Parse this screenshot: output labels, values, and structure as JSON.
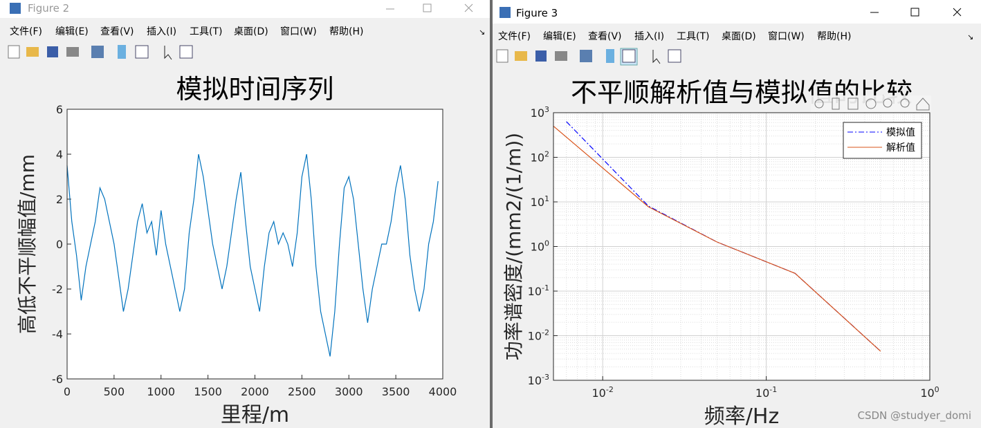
{
  "windows": [
    {
      "title": "Figure 2",
      "menu": [
        "文件(F)",
        "编辑(E)",
        "查看(V)",
        "插入(I)",
        "工具(T)",
        "桌面(D)",
        "窗口(W)",
        "帮助(H)"
      ]
    },
    {
      "title": "Figure 3",
      "menu": [
        "文件(F)",
        "编辑(E)",
        "查看(V)",
        "插入(I)",
        "工具(T)",
        "桌面(D)",
        "窗口(W)",
        "帮助(H)"
      ]
    }
  ],
  "watermark": "CSDN @studyer_domi",
  "chart_data": [
    {
      "type": "line",
      "title": "模拟时间序列",
      "x_label": "里程/m",
      "y_label": "高低不平顺幅值/mm",
      "color": "#0072bd",
      "x": [
        0,
        50,
        100,
        150,
        200,
        250,
        300,
        350,
        400,
        450,
        500,
        550,
        600,
        650,
        700,
        750,
        800,
        850,
        900,
        950,
        1000,
        1050,
        1100,
        1150,
        1200,
        1250,
        1300,
        1350,
        1400,
        1450,
        1500,
        1550,
        1600,
        1650,
        1700,
        1750,
        1800,
        1850,
        1900,
        1950,
        2000,
        2050,
        2100,
        2150,
        2200,
        2250,
        2300,
        2350,
        2400,
        2450,
        2500,
        2550,
        2600,
        2650,
        2700,
        2750,
        2800,
        2850,
        2900,
        2950,
        3000,
        3050,
        3100,
        3150,
        3200,
        3250,
        3300,
        3350,
        3400,
        3450,
        3500,
        3550,
        3600,
        3650,
        3700,
        3750,
        3800,
        3850,
        3900,
        3950
      ],
      "values": [
        3.5,
        1,
        -0.5,
        -2.5,
        -1,
        0,
        1,
        2.5,
        2,
        1,
        0,
        -1.5,
        -3,
        -2,
        -0.5,
        1,
        1.8,
        0.5,
        1,
        -0.5,
        1.5,
        0,
        -1,
        -2,
        -3,
        -2,
        0.5,
        2,
        4,
        3,
        1.5,
        0,
        -1,
        -2,
        -1,
        0.5,
        2,
        3.2,
        1,
        -1,
        -2,
        -3,
        -1,
        0.5,
        1,
        0,
        0.5,
        0,
        -1,
        0.5,
        3,
        4,
        2,
        -1,
        -3,
        -4,
        -5,
        -3,
        0,
        2.5,
        3,
        2,
        0,
        -2,
        -3.5,
        -2,
        -1,
        0,
        0,
        1,
        2.5,
        3.5,
        2,
        -0.5,
        -2,
        -3,
        -2,
        0,
        1,
        2.8
      ],
      "xlim": [
        0,
        4000
      ],
      "xticks": [
        0,
        500,
        1000,
        1500,
        2000,
        2500,
        3000,
        3500,
        4000
      ],
      "ylim": [
        -6,
        6
      ],
      "yticks": [
        -6,
        -4,
        -2,
        0,
        2,
        4,
        6
      ],
      "grid": false
    },
    {
      "type": "line",
      "title": "不平顺解析值与模拟值的比较",
      "x_label": "频率/Hz",
      "y_label": "功率谱密度/(mm2/(1/m))",
      "xscale": "log",
      "yscale": "log",
      "grid": true,
      "minor_grid": true,
      "legend": "northeast",
      "series": [
        {
          "name": "模拟值",
          "color": "#0000ff",
          "linestyle": "dashdot",
          "x": [
            0.006,
            0.019,
            0.05,
            0.15,
            0.5
          ],
          "values": [
            630,
            8.1,
            1.26,
            0.25,
            0.0045
          ]
        },
        {
          "name": "解析值",
          "color": "#d95319",
          "linestyle": "solid",
          "x": [
            0.005,
            0.019,
            0.05,
            0.15,
            0.5
          ],
          "values": [
            500,
            7.8,
            1.26,
            0.25,
            0.0045
          ]
        }
      ],
      "xlim": [
        0.005,
        1
      ],
      "xticks": [
        {
          "value": 0.01,
          "label": "10",
          "exponent": "-2"
        },
        {
          "value": 0.1,
          "label": "10",
          "exponent": "-1"
        },
        {
          "value": 1,
          "label": "10",
          "exponent": "0"
        }
      ],
      "ylim": [
        0.001,
        1000
      ],
      "yticks": [
        {
          "value": 0.001,
          "label": "10",
          "exponent": "-3"
        },
        {
          "value": 0.01,
          "label": "10",
          "exponent": "-2"
        },
        {
          "value": 0.1,
          "label": "10",
          "exponent": "-1"
        },
        {
          "value": 1,
          "label": "10",
          "exponent": "0"
        },
        {
          "value": 10,
          "label": "10",
          "exponent": "1"
        },
        {
          "value": 100,
          "label": "10",
          "exponent": "2"
        },
        {
          "value": 1000,
          "label": "10",
          "exponent": "3"
        }
      ]
    }
  ]
}
